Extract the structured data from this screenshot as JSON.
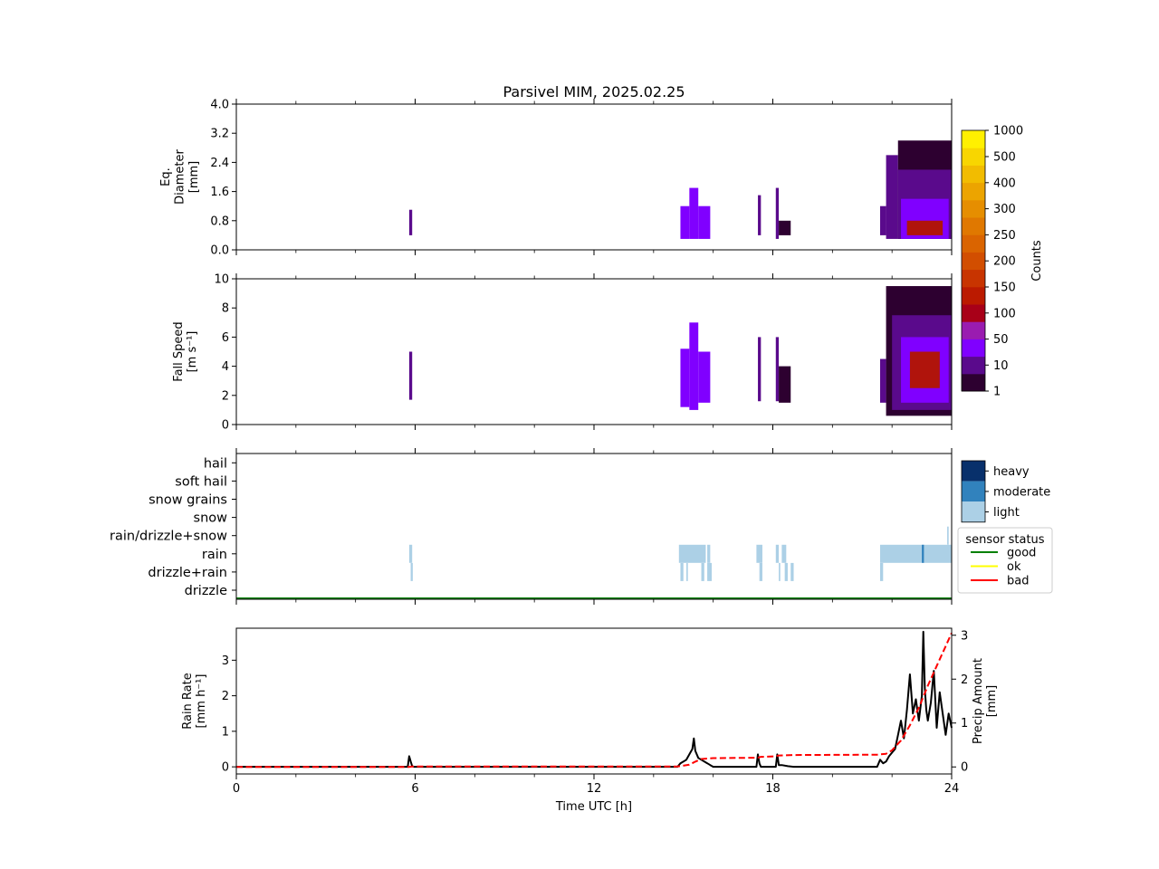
{
  "figure": {
    "title": "Parsivel MIM, 2025.02.25"
  },
  "chart_data": [
    {
      "type": "heatmap",
      "panel": "diameter",
      "ylabel_lines": [
        "Eq.",
        "Diameter",
        "[mm]"
      ],
      "ylim": [
        0,
        4.0
      ],
      "yticks": [
        "0.0",
        "0.8",
        "1.6",
        "2.4",
        "3.2",
        "4.0"
      ],
      "ytick_values": [
        0,
        0.8,
        1.6,
        2.4,
        3.2,
        4.0
      ],
      "xlim": [
        0,
        24
      ],
      "cells": [
        {
          "t0": 5.8,
          "t1": 5.9,
          "d0": 0.4,
          "d1": 1.1,
          "level": 1
        },
        {
          "t0": 14.9,
          "t1": 15.2,
          "d0": 0.3,
          "d1": 1.2,
          "level": 2
        },
        {
          "t0": 15.2,
          "t1": 15.5,
          "d0": 0.3,
          "d1": 1.7,
          "level": 2
        },
        {
          "t0": 15.5,
          "t1": 15.9,
          "d0": 0.3,
          "d1": 1.2,
          "level": 2
        },
        {
          "t0": 17.5,
          "t1": 17.6,
          "d0": 0.4,
          "d1": 1.5,
          "level": 1
        },
        {
          "t0": 18.1,
          "t1": 18.2,
          "d0": 0.3,
          "d1": 1.7,
          "level": 1
        },
        {
          "t0": 18.2,
          "t1": 18.6,
          "d0": 0.4,
          "d1": 0.8,
          "level": 0
        },
        {
          "t0": 21.6,
          "t1": 21.8,
          "d0": 0.4,
          "d1": 1.2,
          "level": 1
        },
        {
          "t0": 21.8,
          "t1": 22.2,
          "d0": 0.3,
          "d1": 2.6,
          "level": 1
        },
        {
          "t0": 22.2,
          "t1": 24.0,
          "d0": 0.3,
          "d1": 3.0,
          "level": 0
        },
        {
          "t0": 22.2,
          "t1": 24.0,
          "d0": 0.3,
          "d1": 2.2,
          "level": 1
        },
        {
          "t0": 22.3,
          "t1": 23.9,
          "d0": 0.3,
          "d1": 1.4,
          "level": 2
        },
        {
          "t0": 22.5,
          "t1": 23.7,
          "d0": 0.4,
          "d1": 0.8,
          "level": 3
        }
      ]
    },
    {
      "type": "heatmap",
      "panel": "fall_speed",
      "ylabel_lines": [
        "Fall Speed",
        "[m s⁻¹]"
      ],
      "ylim": [
        0,
        10
      ],
      "yticks": [
        "0",
        "2",
        "4",
        "6",
        "8",
        "10"
      ],
      "ytick_values": [
        0,
        2,
        4,
        6,
        8,
        10
      ],
      "xlim": [
        0,
        24
      ],
      "cells": [
        {
          "t0": 5.8,
          "t1": 5.9,
          "v0": 1.7,
          "v1": 5.0,
          "level": 1
        },
        {
          "t0": 14.9,
          "t1": 15.2,
          "v0": 1.2,
          "v1": 5.2,
          "level": 2
        },
        {
          "t0": 15.2,
          "t1": 15.5,
          "v0": 1.0,
          "v1": 7.0,
          "level": 2
        },
        {
          "t0": 15.5,
          "t1": 15.9,
          "v0": 1.5,
          "v1": 5.0,
          "level": 2
        },
        {
          "t0": 17.5,
          "t1": 17.6,
          "v0": 1.6,
          "v1": 6.0,
          "level": 1
        },
        {
          "t0": 18.1,
          "t1": 18.2,
          "v0": 1.6,
          "v1": 6.0,
          "level": 1
        },
        {
          "t0": 18.2,
          "t1": 18.6,
          "v0": 1.5,
          "v1": 4.0,
          "level": 0
        },
        {
          "t0": 21.6,
          "t1": 21.8,
          "v0": 1.5,
          "v1": 4.5,
          "level": 1
        },
        {
          "t0": 21.8,
          "t1": 24.0,
          "v0": 0.6,
          "v1": 9.5,
          "level": 0
        },
        {
          "t0": 22.0,
          "t1": 24.0,
          "v0": 1.0,
          "v1": 7.5,
          "level": 1
        },
        {
          "t0": 22.3,
          "t1": 23.9,
          "v0": 1.5,
          "v1": 6.0,
          "level": 2
        },
        {
          "t0": 22.6,
          "t1": 23.6,
          "v0": 2.5,
          "v1": 5.0,
          "level": 3
        }
      ]
    },
    {
      "type": "heatmap",
      "panel": "precip_type",
      "categories": [
        "drizzle",
        "drizzle+rain",
        "rain",
        "rain/drizzle+snow",
        "snow",
        "snow grains",
        "soft hail",
        "hail"
      ],
      "xlim": [
        0,
        24
      ],
      "intensity_labels": [
        "heavy",
        "moderate",
        "light"
      ],
      "intensity_colors": [
        "#08306b",
        "#3182bd",
        "#acd0e6"
      ],
      "legend_title": "sensor status",
      "status_labels": [
        "good",
        "ok",
        "bad"
      ],
      "status_colors": [
        "#008000",
        "#ffff00",
        "#ff0000"
      ],
      "status_good_full_day": true,
      "segments": [
        {
          "cat": "rain",
          "t0": 5.8,
          "t1": 5.9,
          "intensity": "light"
        },
        {
          "cat": "drizzle+rain",
          "t0": 5.85,
          "t1": 5.92,
          "intensity": "light"
        },
        {
          "cat": "rain",
          "t0": 14.85,
          "t1": 15.75,
          "intensity": "light"
        },
        {
          "cat": "rain",
          "t0": 15.8,
          "t1": 15.9,
          "intensity": "light"
        },
        {
          "cat": "drizzle+rain",
          "t0": 14.9,
          "t1": 15.0,
          "intensity": "light"
        },
        {
          "cat": "drizzle+rain",
          "t0": 15.1,
          "t1": 15.15,
          "intensity": "light"
        },
        {
          "cat": "drizzle+rain",
          "t0": 15.6,
          "t1": 15.7,
          "intensity": "light"
        },
        {
          "cat": "drizzle+rain",
          "t0": 15.8,
          "t1": 15.95,
          "intensity": "light"
        },
        {
          "cat": "rain",
          "t0": 17.45,
          "t1": 17.65,
          "intensity": "light"
        },
        {
          "cat": "drizzle+rain",
          "t0": 17.55,
          "t1": 17.65,
          "intensity": "light"
        },
        {
          "cat": "rain",
          "t0": 18.1,
          "t1": 18.2,
          "intensity": "light"
        },
        {
          "cat": "rain",
          "t0": 18.3,
          "t1": 18.45,
          "intensity": "light"
        },
        {
          "cat": "drizzle+rain",
          "t0": 18.2,
          "t1": 18.25,
          "intensity": "light"
        },
        {
          "cat": "drizzle+rain",
          "t0": 18.4,
          "t1": 18.5,
          "intensity": "light"
        },
        {
          "cat": "drizzle+rain",
          "t0": 18.6,
          "t1": 18.7,
          "intensity": "light"
        },
        {
          "cat": "rain",
          "t0": 21.6,
          "t1": 24.0,
          "intensity": "light"
        },
        {
          "cat": "rain",
          "t0": 23.0,
          "t1": 23.07,
          "intensity": "moderate"
        },
        {
          "cat": "drizzle+rain",
          "t0": 21.6,
          "t1": 21.7,
          "intensity": "light"
        },
        {
          "cat": "rain/drizzle+snow",
          "t0": 23.85,
          "t1": 23.9,
          "intensity": "light"
        }
      ]
    },
    {
      "type": "line",
      "panel": "rain_rate",
      "ylabel_lines": [
        "Rain Rate",
        "[mm h⁻¹]"
      ],
      "ylabel2_lines": [
        "Precip Amount",
        "[mm]"
      ],
      "xlabel": "Time UTC [h]",
      "xticks": [
        "0",
        "6",
        "12",
        "18",
        "24"
      ],
      "xtick_values": [
        0,
        6,
        12,
        18,
        24
      ],
      "xlim": [
        0,
        24
      ],
      "ylim": [
        -0.2,
        3.9
      ],
      "yticks": [
        "0",
        "1",
        "2",
        "3"
      ],
      "ytick_values": [
        0,
        1,
        2,
        3
      ],
      "y2lim": [
        -0.16,
        3.16
      ],
      "y2ticks": [
        "0",
        "1",
        "2",
        "3"
      ],
      "y2tick_values": [
        0,
        1,
        2,
        3
      ],
      "series": [
        {
          "key": "rain_rate",
          "color": "#000000",
          "dash": "solid",
          "x": [
            0,
            5.75,
            5.8,
            5.85,
            5.9,
            5.95,
            14.8,
            14.9,
            15.0,
            15.1,
            15.2,
            15.3,
            15.35,
            15.4,
            15.5,
            15.6,
            15.7,
            15.8,
            15.9,
            16.0,
            17.45,
            17.5,
            17.55,
            17.6,
            18.1,
            18.15,
            18.2,
            18.3,
            18.5,
            18.7,
            21.5,
            21.6,
            21.7,
            21.8,
            21.9,
            22.0,
            22.1,
            22.2,
            22.3,
            22.4,
            22.5,
            22.6,
            22.7,
            22.8,
            22.9,
            23.0,
            23.05,
            23.1,
            23.15,
            23.2,
            23.3,
            23.4,
            23.5,
            23.6,
            23.7,
            23.8,
            23.9,
            24.0
          ],
          "y": [
            0,
            0,
            0.3,
            0.15,
            0.02,
            0,
            0,
            0.1,
            0.15,
            0.2,
            0.35,
            0.5,
            0.8,
            0.45,
            0.25,
            0.2,
            0.15,
            0.1,
            0.05,
            0,
            0,
            0.35,
            0.1,
            0,
            0,
            0.35,
            0.05,
            0.05,
            0.02,
            0,
            0,
            0.2,
            0.1,
            0.15,
            0.3,
            0.4,
            0.5,
            0.9,
            1.3,
            0.8,
            1.6,
            2.6,
            1.5,
            1.9,
            1.3,
            2.0,
            3.8,
            2.2,
            1.6,
            1.3,
            1.8,
            2.7,
            1.1,
            2.1,
            1.5,
            0.9,
            1.5,
            1.1
          ]
        },
        {
          "key": "precip_amount",
          "color": "#ff0000",
          "dash": "dashed",
          "axis": "right",
          "x": [
            0,
            5.8,
            5.9,
            14.8,
            15.2,
            15.4,
            15.6,
            16.0,
            17.5,
            17.6,
            18.1,
            18.2,
            18.7,
            21.5,
            21.8,
            22.0,
            22.3,
            22.6,
            22.9,
            23.2,
            23.5,
            23.8,
            24.0
          ],
          "y": [
            0,
            0,
            0.01,
            0.01,
            0.05,
            0.12,
            0.18,
            0.2,
            0.21,
            0.23,
            0.24,
            0.26,
            0.27,
            0.28,
            0.3,
            0.38,
            0.6,
            0.95,
            1.35,
            1.85,
            2.3,
            2.75,
            3.05
          ]
        }
      ]
    }
  ],
  "colorbar": {
    "label": "Counts",
    "ticks": [
      "1",
      "10",
      "50",
      "100",
      "150",
      "200",
      "250",
      "300",
      "400",
      "500",
      "1000"
    ],
    "colors": [
      "#2d0030",
      "#5a0a8c",
      "#8000ff",
      "#9a1cb0",
      "#a80018",
      "#bb1a00",
      "#c83400",
      "#d24e00",
      "#da6400",
      "#e07800",
      "#e68e00",
      "#eca400",
      "#f2bc00",
      "#f8d600",
      "#fff000"
    ]
  }
}
